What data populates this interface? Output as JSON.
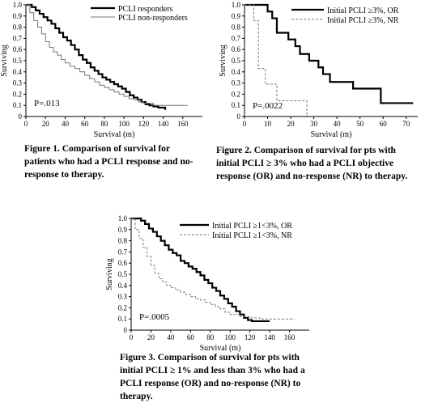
{
  "chart_data": [
    {
      "type": "line",
      "ylabel": "Surviving",
      "xlabel": "Survival (m)",
      "xlim": [
        0,
        180
      ],
      "ylim": [
        0,
        1.0
      ],
      "x_ticks": [
        "0",
        "20",
        "40",
        "60",
        "80",
        "100",
        "120",
        "140",
        "160"
      ],
      "y_ticks": [
        "0",
        "0.1",
        "0.2",
        "0.3",
        "0.4",
        "0.5",
        "0.6",
        "0.7",
        "0.8",
        "0.9",
        "1.0"
      ],
      "annotation": "P=.013",
      "legend_position": "top-right",
      "series": [
        {
          "name": "PCLI responders",
          "style": "solid-thick",
          "color": "#000000",
          "x": [
            0,
            6,
            10,
            14,
            18,
            22,
            26,
            30,
            34,
            38,
            42,
            46,
            50,
            54,
            58,
            62,
            66,
            70,
            74,
            78,
            82,
            86,
            90,
            94,
            98,
            102,
            106,
            110,
            114,
            118,
            122,
            126,
            130,
            135,
            142
          ],
          "y": [
            1.0,
            0.98,
            0.95,
            0.92,
            0.89,
            0.86,
            0.83,
            0.79,
            0.75,
            0.71,
            0.68,
            0.64,
            0.6,
            0.55,
            0.51,
            0.48,
            0.44,
            0.41,
            0.38,
            0.35,
            0.33,
            0.31,
            0.29,
            0.27,
            0.25,
            0.22,
            0.19,
            0.17,
            0.15,
            0.13,
            0.11,
            0.1,
            0.09,
            0.08,
            0.06
          ]
        },
        {
          "name": "PCLI non-responders",
          "style": "solid-thin",
          "color": "#777777",
          "x": [
            0,
            4,
            8,
            12,
            16,
            20,
            24,
            28,
            32,
            36,
            40,
            45,
            50,
            55,
            60,
            65,
            70,
            75,
            80,
            85,
            90,
            95,
            100,
            105,
            110,
            115,
            120,
            130,
            140,
            150,
            165
          ],
          "y": [
            1.0,
            0.93,
            0.86,
            0.8,
            0.74,
            0.67,
            0.62,
            0.58,
            0.55,
            0.51,
            0.48,
            0.45,
            0.43,
            0.4,
            0.37,
            0.34,
            0.31,
            0.28,
            0.26,
            0.24,
            0.22,
            0.2,
            0.18,
            0.16,
            0.15,
            0.13,
            0.12,
            0.1,
            0.1,
            0.1,
            0.1
          ]
        }
      ]
    },
    {
      "type": "line",
      "ylabel": "Surviving",
      "xlabel": "Survival (m)",
      "xlim": [
        0,
        75
      ],
      "ylim": [
        0,
        1.0
      ],
      "x_ticks": [
        "0",
        "10",
        "20",
        "30",
        "40",
        "50",
        "60",
        "70"
      ],
      "y_ticks": [
        "0",
        "0.1",
        "0.2",
        "0.3",
        "0.4",
        "0.5",
        "0.6",
        "0.7",
        "0.8",
        "0.9",
        "1.0"
      ],
      "annotation": "P=.0022",
      "legend_position": "top-right",
      "series": [
        {
          "name": "Initial PCLI  ≥3%, OR",
          "style": "solid-thick",
          "color": "#000000",
          "x": [
            0,
            10,
            12,
            14,
            19,
            22,
            24,
            28,
            32,
            34,
            37,
            42,
            47,
            59,
            73
          ],
          "y": [
            1.0,
            0.94,
            0.88,
            0.75,
            0.69,
            0.63,
            0.56,
            0.5,
            0.44,
            0.38,
            0.31,
            0.31,
            0.25,
            0.12,
            0.12
          ]
        },
        {
          "name": "Initial PCLI  ≥3%, NR",
          "style": "dashed",
          "color": "#777777",
          "x": [
            0,
            4,
            6,
            9,
            14,
            16,
            27
          ],
          "y": [
            1.0,
            0.86,
            0.43,
            0.29,
            0.14,
            0.14,
            0.0
          ]
        }
      ]
    },
    {
      "type": "line",
      "ylabel": "Surviving",
      "xlabel": "Survival (m)",
      "xlim": [
        0,
        180
      ],
      "ylim": [
        0,
        1.0
      ],
      "x_ticks": [
        "0",
        "20",
        "40",
        "60",
        "80",
        "100",
        "120",
        "140",
        "160"
      ],
      "y_ticks": [
        "0",
        "0.1",
        "0.2",
        "0.3",
        "0.4",
        "0.5",
        "0.6",
        "0.7",
        "0.8",
        "0.9",
        "1.0"
      ],
      "annotation": "P=.0005",
      "legend_position": "top-right",
      "series": [
        {
          "name": "Initial PCLI  ≥1<3%, OR",
          "style": "solid-thick",
          "color": "#000000",
          "x": [
            0,
            10,
            14,
            18,
            22,
            26,
            30,
            34,
            38,
            42,
            46,
            50,
            54,
            58,
            62,
            66,
            70,
            74,
            78,
            82,
            86,
            90,
            94,
            98,
            102,
            106,
            110,
            114,
            118,
            122,
            130,
            140
          ],
          "y": [
            1.0,
            0.98,
            0.95,
            0.91,
            0.88,
            0.84,
            0.8,
            0.76,
            0.72,
            0.69,
            0.67,
            0.62,
            0.6,
            0.57,
            0.55,
            0.52,
            0.49,
            0.45,
            0.42,
            0.38,
            0.35,
            0.31,
            0.28,
            0.24,
            0.21,
            0.17,
            0.14,
            0.11,
            0.09,
            0.08,
            0.08,
            0.08
          ]
        },
        {
          "name": "Initial PCLI  ≥1<3%, NR",
          "style": "dashed",
          "color": "#777777",
          "x": [
            0,
            4,
            8,
            12,
            16,
            20,
            24,
            28,
            32,
            36,
            40,
            45,
            50,
            55,
            60,
            65,
            70,
            75,
            80,
            85,
            90,
            95,
            100,
            110,
            120,
            130,
            140,
            155,
            165
          ],
          "y": [
            1.0,
            0.9,
            0.82,
            0.74,
            0.66,
            0.58,
            0.51,
            0.46,
            0.43,
            0.4,
            0.38,
            0.36,
            0.34,
            0.32,
            0.3,
            0.28,
            0.27,
            0.25,
            0.23,
            0.21,
            0.19,
            0.16,
            0.14,
            0.12,
            0.11,
            0.1,
            0.1,
            0.1,
            0.1
          ]
        }
      ]
    }
  ],
  "captions": {
    "fig1": "Figure 1. Comparison of survival for patients who had a PCLI response and no-response to therapy.",
    "fig2": "Figure 2. Comparison of survival for pts with initial PCLI ≥ 3% who had a PCLI objective response (OR) and no-response (NR) to therapy.",
    "fig3": "Figure 3. Comparison of survival for pts with initial PCLI ≥ 1% and less than 3% who had a PCLI response (OR) and no-response (NR) to therapy."
  }
}
